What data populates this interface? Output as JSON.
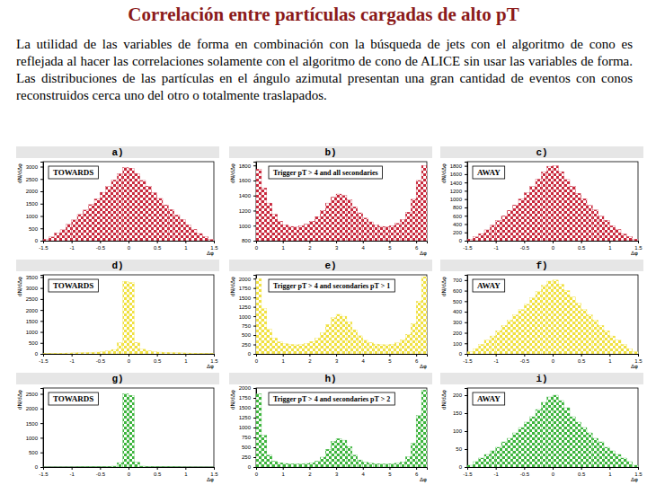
{
  "title": "Correlación entre partículas cargadas de alto pT",
  "text": "La utilidad de las variables de forma en combinación con la búsqueda de jets con el algoritmo de cono es reflejada al hacer las correlaciones solamente con el algoritmo de cono de ALICE sin usar las variables de forma. Las distribuciones de las partículas en el ángulo azimutal presentan una gran cantidad de eventos con conos reconstruidos cerca uno del otro o totalmente traslapados.",
  "chart_data": [
    {
      "type": "histogram",
      "title": "a)",
      "annotation": "TOWARDS",
      "x_label": "Δφ",
      "y_label": "dN/dΔφ",
      "color": "#c8283c",
      "bins": [
        -1.5,
        -1.4,
        -1.3,
        -1.2,
        -1.1,
        -1,
        -0.9,
        -0.8,
        -0.7,
        -0.6,
        -0.5,
        -0.4,
        -0.3,
        -0.2,
        -0.1,
        0,
        0.1,
        0.2,
        0.3,
        0.4,
        0.5,
        0.6,
        0.7,
        0.8,
        0.9,
        1,
        1.1,
        1.2,
        1.3,
        1.4,
        1.5
      ],
      "values": [
        60,
        150,
        310,
        440,
        660,
        840,
        1060,
        1240,
        1460,
        1690,
        1960,
        2190,
        2460,
        2710,
        2960,
        2940,
        2720,
        2440,
        2210,
        1940,
        1710,
        1450,
        1260,
        1040,
        860,
        640,
        460,
        290,
        160,
        50
      ],
      "xlim": [
        -1.5,
        1.5
      ],
      "xticks": [
        -1.5,
        -1,
        -0.5,
        0,
        0.5,
        1,
        1.5
      ],
      "ylim": [
        0,
        3200
      ],
      "yticks": [
        0,
        500,
        1000,
        1500,
        2000,
        2500,
        3000
      ]
    },
    {
      "type": "histogram",
      "title": "b)",
      "annotation": "Trigger pT > 4 and all secondaries",
      "x_label": "Δφ",
      "y_label": "dN/dΔφ",
      "color": "#c8283c",
      "bins": [
        0,
        0.2,
        0.4,
        0.6,
        0.8,
        1,
        1.2,
        1.4,
        1.6,
        1.8,
        2,
        2.2,
        2.4,
        2.6,
        2.8,
        3,
        3.2,
        3.4,
        3.6,
        3.8,
        4,
        4.2,
        4.4,
        4.6,
        4.8,
        5,
        5.2,
        5.4,
        5.6,
        5.8,
        6,
        6.2,
        6.4
      ],
      "values": [
        1750,
        1500,
        1300,
        1150,
        1060,
        1010,
        990,
        980,
        1000,
        1020,
        1060,
        1120,
        1200,
        1300,
        1380,
        1420,
        1400,
        1340,
        1250,
        1170,
        1100,
        1050,
        1010,
        990,
        985,
        1000,
        1030,
        1080,
        1180,
        1350,
        1600,
        1800
      ],
      "xlim": [
        0,
        6.4
      ],
      "xticks": [
        0,
        1,
        2,
        3,
        4,
        5,
        6
      ],
      "ylim": [
        800,
        1850
      ],
      "yticks": [
        800,
        1000,
        1200,
        1400,
        1600,
        1800
      ]
    },
    {
      "type": "histogram",
      "title": "c)",
      "annotation": "AWAY",
      "x_label": "Δφ",
      "y_label": "dN/dΔφ",
      "color": "#c8283c",
      "bins": [
        -1.5,
        -1.4,
        -1.3,
        -1.2,
        -1.1,
        -1,
        -0.9,
        -0.8,
        -0.7,
        -0.6,
        -0.5,
        -0.4,
        -0.3,
        -0.2,
        -0.1,
        0,
        0.1,
        0.2,
        0.3,
        0.4,
        0.5,
        0.6,
        0.7,
        0.8,
        0.9,
        1,
        1.1,
        1.2,
        1.3,
        1.4,
        1.5
      ],
      "values": [
        40,
        90,
        170,
        260,
        370,
        480,
        600,
        730,
        860,
        1000,
        1150,
        1300,
        1480,
        1650,
        1790,
        1800,
        1660,
        1470,
        1310,
        1140,
        1010,
        850,
        740,
        590,
        490,
        360,
        270,
        160,
        100,
        40
      ],
      "xlim": [
        -1.5,
        1.5
      ],
      "xticks": [
        -1.5,
        -1,
        -0.5,
        0,
        0.5,
        1,
        1.5
      ],
      "ylim": [
        0,
        1900
      ],
      "yticks": [
        0,
        200,
        400,
        600,
        800,
        1000,
        1200,
        1400,
        1600,
        1800
      ]
    },
    {
      "type": "histogram",
      "title": "d)",
      "annotation": "TOWARDS",
      "x_label": "Δφ",
      "y_label": "dN/dΔφ",
      "color": "#f0e040",
      "bins": [
        -1.5,
        -1.4,
        -1.3,
        -1.2,
        -1.1,
        -1,
        -0.9,
        -0.8,
        -0.7,
        -0.6,
        -0.5,
        -0.4,
        -0.3,
        -0.2,
        -0.1,
        0,
        0.1,
        0.2,
        0.3,
        0.4,
        0.5,
        0.6,
        0.7,
        0.8,
        0.9,
        1,
        1.1,
        1.2,
        1.3,
        1.4,
        1.5
      ],
      "values": [
        20,
        25,
        30,
        35,
        40,
        45,
        55,
        60,
        70,
        80,
        100,
        130,
        200,
        500,
        3300,
        3250,
        520,
        210,
        140,
        100,
        80,
        70,
        60,
        55,
        45,
        40,
        35,
        30,
        25,
        20
      ],
      "xlim": [
        -1.5,
        1.5
      ],
      "xticks": [
        -1.5,
        -1,
        -0.5,
        0,
        0.5,
        1,
        1.5
      ],
      "ylim": [
        0,
        3600
      ],
      "yticks": [
        0,
        500,
        1000,
        1500,
        2000,
        2500,
        3000,
        3500
      ]
    },
    {
      "type": "histogram",
      "title": "e)",
      "annotation": "Trigger pT > 4 and secondaries pT > 1",
      "x_label": "Δφ",
      "y_label": "dN/dΔφ",
      "color": "#f0e040",
      "bins": [
        0,
        0.2,
        0.4,
        0.6,
        0.8,
        1,
        1.2,
        1.4,
        1.6,
        1.8,
        2,
        2.2,
        2.4,
        2.6,
        2.8,
        3,
        3.2,
        3.4,
        3.6,
        3.8,
        4,
        4.2,
        4.4,
        4.6,
        4.8,
        5,
        5.2,
        5.4,
        5.6,
        5.8,
        6,
        6.2,
        6.4
      ],
      "values": [
        2000,
        1200,
        650,
        420,
        320,
        270,
        250,
        240,
        250,
        280,
        330,
        420,
        560,
        780,
        960,
        1050,
        1000,
        850,
        640,
        480,
        360,
        300,
        260,
        245,
        240,
        255,
        290,
        370,
        520,
        800,
        1400,
        2050
      ],
      "xlim": [
        0,
        6.4
      ],
      "xticks": [
        0,
        1,
        2,
        3,
        4,
        5,
        6
      ],
      "ylim": [
        0,
        2100
      ],
      "yticks": [
        0,
        250,
        500,
        750,
        1000,
        1250,
        1500,
        1750,
        2000
      ]
    },
    {
      "type": "histogram",
      "title": "f)",
      "annotation": "AWAY",
      "x_label": "Δφ",
      "y_label": "dN/dΔφ",
      "color": "#f0e040",
      "bins": [
        -1.5,
        -1.4,
        -1.3,
        -1.2,
        -1.1,
        -1,
        -0.9,
        -0.8,
        -0.7,
        -0.6,
        -0.5,
        -0.4,
        -0.3,
        -0.2,
        -0.1,
        0,
        0.1,
        0.2,
        0.3,
        0.4,
        0.5,
        0.6,
        0.7,
        0.8,
        0.9,
        1,
        1.1,
        1.2,
        1.3,
        1.4,
        1.5
      ],
      "values": [
        20,
        50,
        90,
        130,
        170,
        220,
        270,
        320,
        370,
        420,
        470,
        530,
        590,
        650,
        690,
        700,
        660,
        600,
        540,
        480,
        420,
        370,
        320,
        270,
        220,
        170,
        130,
        90,
        50,
        20
      ],
      "xlim": [
        -1.5,
        1.5
      ],
      "xticks": [
        -1.5,
        -1,
        -0.5,
        0,
        0.5,
        1,
        1.5
      ],
      "ylim": [
        0,
        750
      ],
      "yticks": [
        0,
        100,
        200,
        300,
        400,
        500,
        600,
        700
      ]
    },
    {
      "type": "histogram",
      "title": "g)",
      "annotation": "TOWARDS",
      "x_label": "Δφ",
      "y_label": "dN/dΔφ",
      "color": "#3cb43c",
      "bins": [
        -1.5,
        -1.4,
        -1.3,
        -1.2,
        -1.1,
        -1,
        -0.9,
        -0.8,
        -0.7,
        -0.6,
        -0.5,
        -0.4,
        -0.3,
        -0.2,
        -0.1,
        0,
        0.1,
        0.2,
        0.3,
        0.4,
        0.5,
        0.6,
        0.7,
        0.8,
        0.9,
        1,
        1.1,
        1.2,
        1.3,
        1.4,
        1.5
      ],
      "values": [
        2,
        2,
        3,
        3,
        4,
        4,
        5,
        6,
        7,
        8,
        10,
        15,
        30,
        150,
        2500,
        2450,
        160,
        30,
        15,
        10,
        8,
        7,
        6,
        5,
        4,
        4,
        3,
        3,
        2,
        2
      ],
      "xlim": [
        -1.5,
        1.5
      ],
      "xticks": [
        -1.5,
        -1,
        -0.5,
        0,
        0.5,
        1,
        1.5
      ],
      "ylim": [
        0,
        2700
      ],
      "yticks": [
        0,
        500,
        1000,
        1500,
        2000,
        2500
      ]
    },
    {
      "type": "histogram",
      "title": "h)",
      "annotation": "Trigger pT > 4 and secondaries pT > 2",
      "x_label": "Δφ",
      "y_label": "dN/dΔφ",
      "color": "#3cb43c",
      "bins": [
        0,
        0.2,
        0.4,
        0.6,
        0.8,
        1,
        1.2,
        1.4,
        1.6,
        1.8,
        2,
        2.2,
        2.4,
        2.6,
        2.8,
        3,
        3.2,
        3.4,
        3.6,
        3.8,
        4,
        4.2,
        4.4,
        4.6,
        4.8,
        5,
        5.2,
        5.4,
        5.6,
        5.8,
        6,
        6.2,
        6.4
      ],
      "values": [
        1850,
        800,
        300,
        150,
        110,
        90,
        80,
        75,
        80,
        90,
        110,
        150,
        250,
        450,
        650,
        720,
        680,
        520,
        300,
        180,
        120,
        95,
        85,
        78,
        75,
        82,
        95,
        130,
        260,
        600,
        1300,
        1950
      ],
      "xlim": [
        0,
        6.4
      ],
      "xticks": [
        0,
        1,
        2,
        3,
        4,
        5,
        6
      ],
      "ylim": [
        0,
        2000
      ],
      "yticks": [
        0,
        250,
        500,
        750,
        1000,
        1250,
        1500,
        1750,
        2000
      ]
    },
    {
      "type": "histogram",
      "title": "i)",
      "annotation": "AWAY",
      "x_label": "Δφ",
      "y_label": "dN/dΔφ",
      "color": "#3cb43c",
      "bins": [
        -1.5,
        -1.4,
        -1.3,
        -1.2,
        -1.1,
        -1,
        -0.9,
        -0.8,
        -0.7,
        -0.6,
        -0.5,
        -0.4,
        -0.3,
        -0.2,
        -0.1,
        0,
        0.1,
        0.2,
        0.3,
        0.4,
        0.5,
        0.6,
        0.7,
        0.8,
        0.9,
        1,
        1.1,
        1.2,
        1.3,
        1.4,
        1.5
      ],
      "values": [
        5,
        15,
        25,
        35,
        45,
        55,
        70,
        80,
        95,
        110,
        125,
        140,
        160,
        180,
        195,
        200,
        185,
        165,
        140,
        125,
        110,
        95,
        80,
        70,
        55,
        45,
        35,
        25,
        15,
        5
      ],
      "xlim": [
        -1.5,
        1.5
      ],
      "xticks": [
        -1.5,
        -1,
        -0.5,
        0,
        0.5,
        1,
        1.5
      ],
      "ylim": [
        0,
        220
      ],
      "yticks": [
        0,
        50,
        100,
        150,
        200
      ]
    }
  ]
}
